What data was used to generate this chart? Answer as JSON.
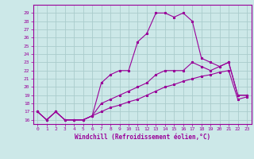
{
  "xlabel": "Windchill (Refroidissement éolien,°C)",
  "ylabel": "",
  "bg_color": "#cce8e8",
  "grid_color": "#aacccc",
  "line_color": "#990099",
  "ylim": [
    15.5,
    30
  ],
  "xlim": [
    -0.5,
    23.5
  ],
  "yticks": [
    16,
    17,
    18,
    19,
    20,
    21,
    22,
    23,
    24,
    25,
    26,
    27,
    28,
    29
  ],
  "xticks": [
    0,
    1,
    2,
    3,
    4,
    5,
    6,
    7,
    8,
    9,
    10,
    11,
    12,
    13,
    14,
    15,
    16,
    17,
    18,
    19,
    20,
    21,
    22,
    23
  ],
  "line1_x": [
    0,
    1,
    2,
    3,
    4,
    5,
    6,
    7,
    8,
    9,
    10,
    11,
    12,
    13,
    14,
    15,
    16,
    17,
    18,
    19,
    20,
    21,
    22,
    23
  ],
  "line1_y": [
    17,
    16,
    17,
    16,
    16,
    16,
    16.5,
    17,
    17.5,
    17.8,
    18.2,
    18.5,
    19.0,
    19.5,
    20.0,
    20.3,
    20.7,
    21.0,
    21.3,
    21.5,
    21.8,
    22.0,
    18.5,
    18.8
  ],
  "line2_x": [
    0,
    1,
    2,
    3,
    4,
    5,
    6,
    7,
    8,
    9,
    10,
    11,
    12,
    13,
    14,
    15,
    16,
    17,
    18,
    19,
    20,
    21,
    22,
    23
  ],
  "line2_y": [
    17,
    16,
    17,
    16,
    16,
    16,
    16.5,
    20.5,
    21.5,
    22,
    22,
    25.5,
    26.5,
    29,
    29,
    28.5,
    29,
    28,
    23.5,
    23,
    22.5,
    23,
    19.0,
    19.0
  ],
  "line3_x": [
    0,
    1,
    2,
    3,
    4,
    5,
    6,
    7,
    8,
    9,
    10,
    11,
    12,
    13,
    14,
    15,
    16,
    17,
    18,
    19,
    20,
    21,
    22,
    23
  ],
  "line3_y": [
    17,
    16,
    17,
    16,
    16,
    16,
    16.5,
    18.0,
    18.5,
    19.0,
    19.5,
    20.0,
    20.5,
    21.5,
    22.0,
    22.0,
    22.0,
    23.0,
    22.5,
    22.0,
    22.5,
    23.0,
    19.0,
    19.0
  ]
}
